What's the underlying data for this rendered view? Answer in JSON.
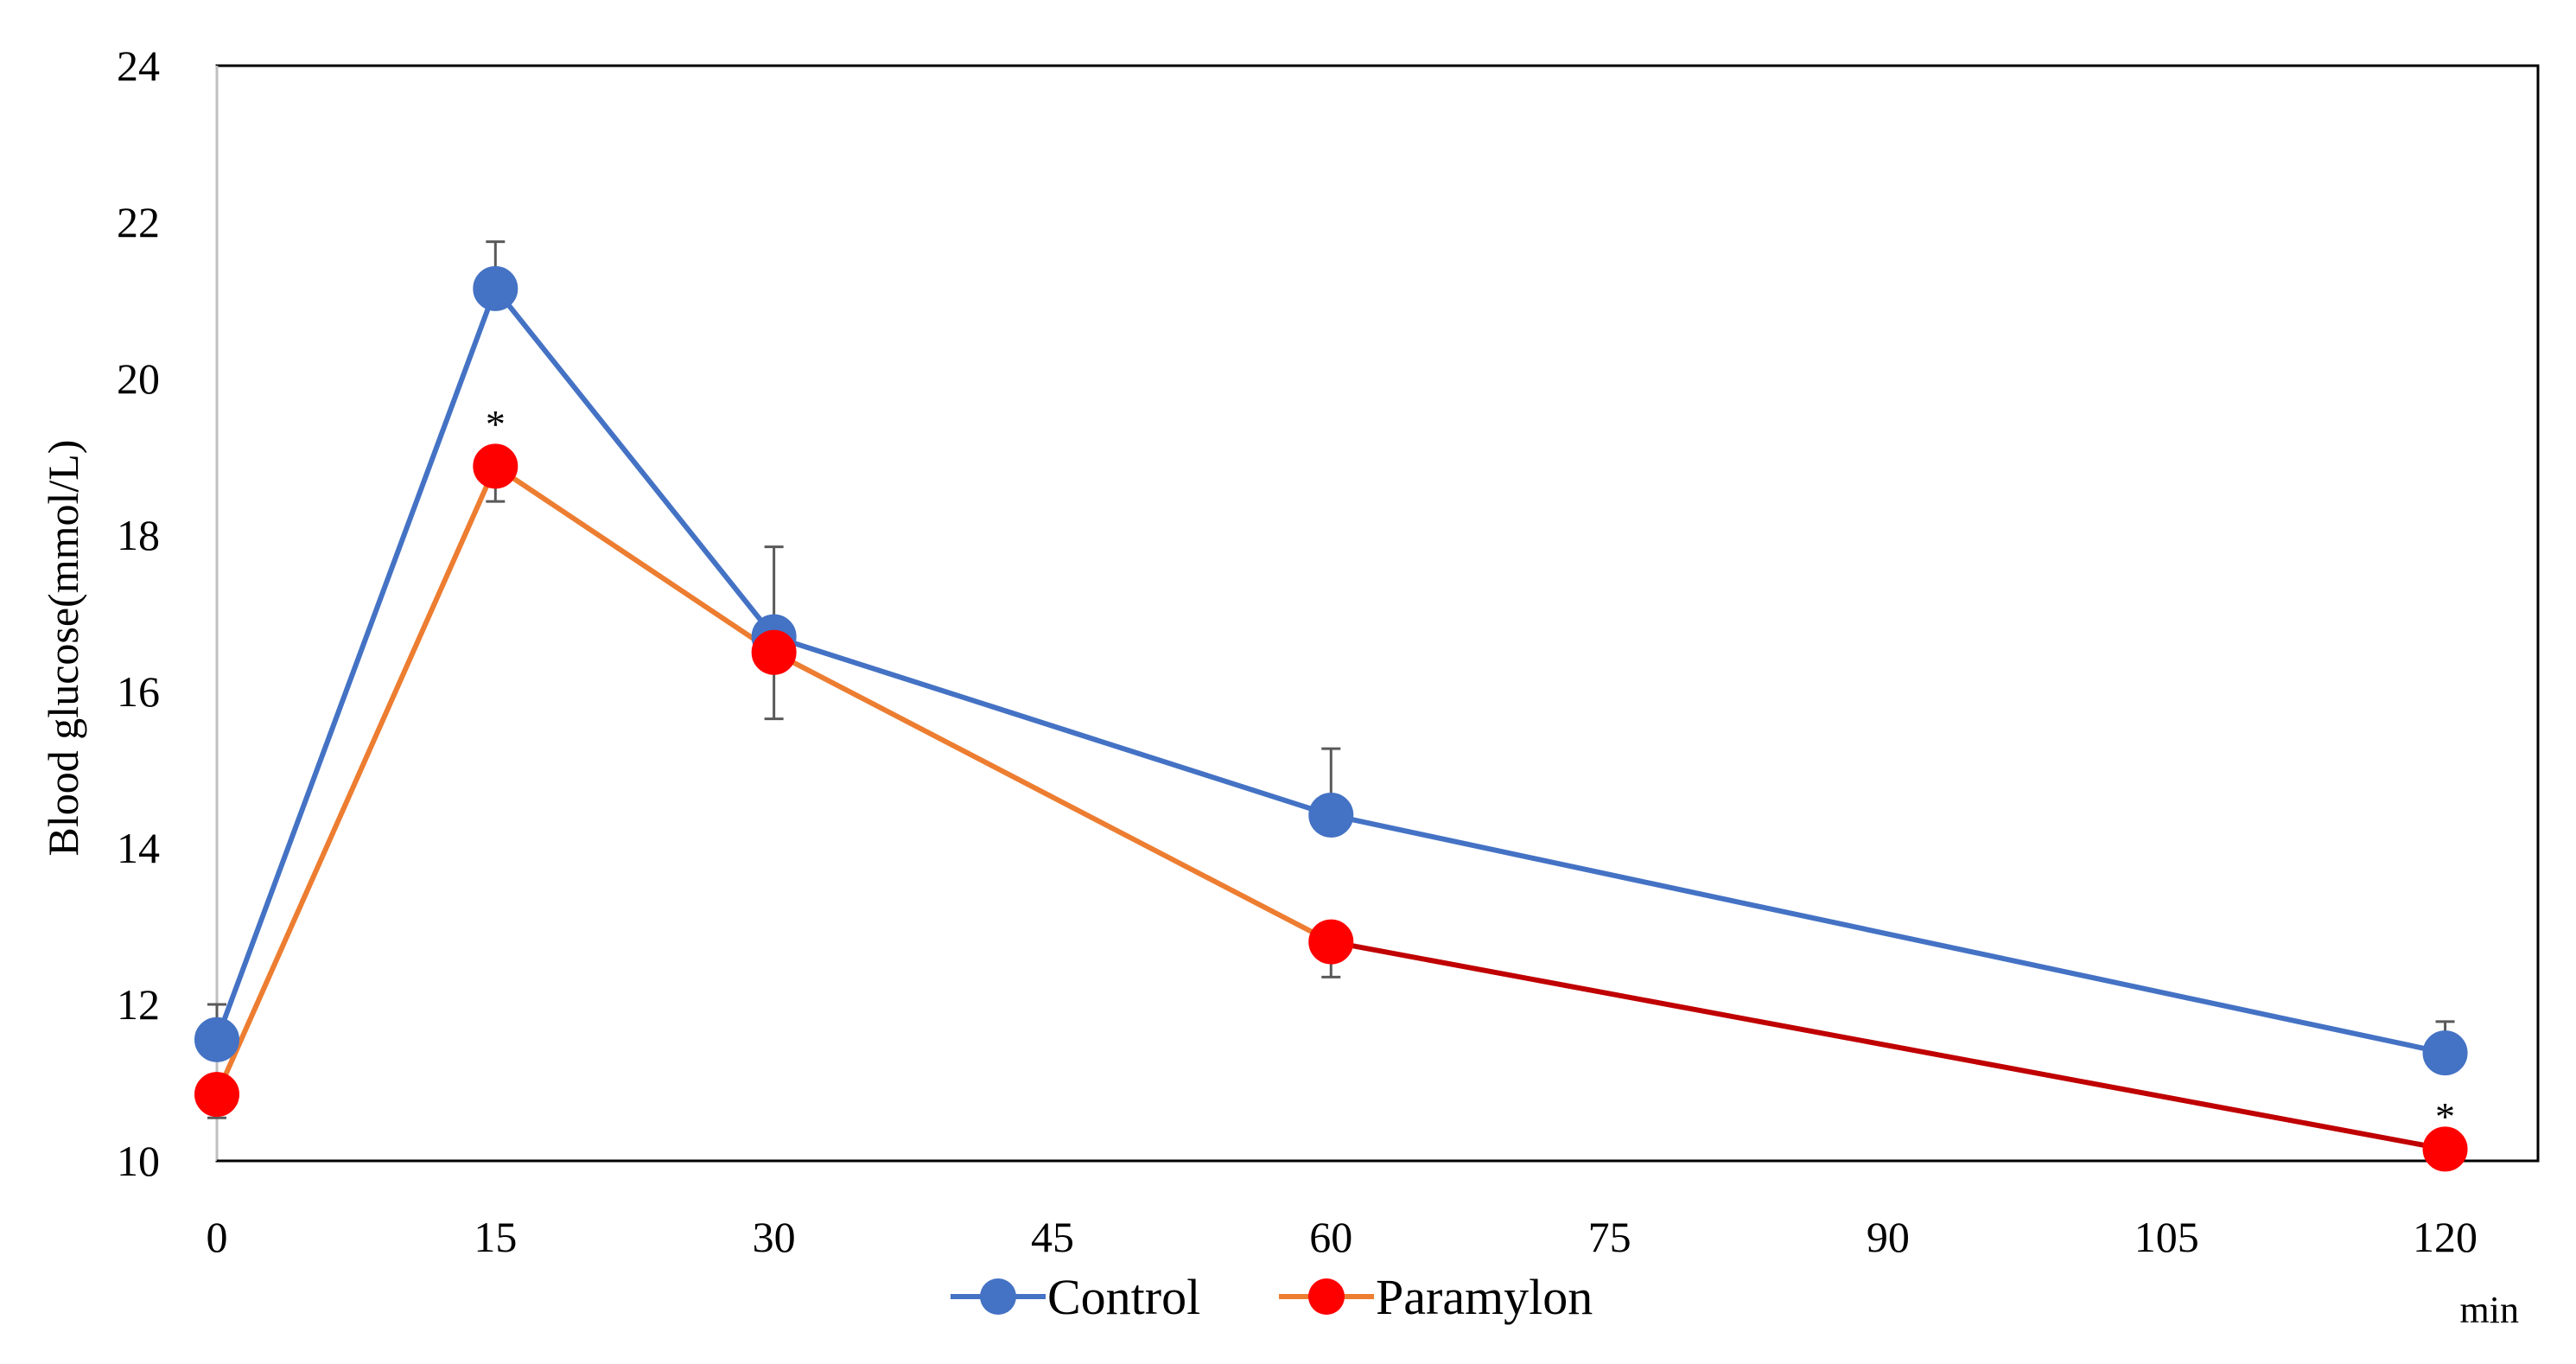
{
  "chart_data": {
    "type": "line",
    "title": "",
    "xlabel": "min",
    "ylabel": "Blood glucose(mmol/L)",
    "xlim": [
      0,
      125
    ],
    "ylim": [
      10,
      24
    ],
    "x_ticks": [
      0,
      15,
      30,
      45,
      60,
      75,
      90,
      105,
      120
    ],
    "y_ticks": [
      10,
      12,
      14,
      16,
      18,
      20,
      22,
      24
    ],
    "x_tick_labels": [
      "0",
      "15",
      "30",
      "45",
      "60",
      "75",
      "90",
      "105",
      "120"
    ],
    "y_tick_labels": [
      "10",
      "12",
      "14",
      "16",
      "18",
      "20",
      "22",
      "24"
    ],
    "grid": false,
    "legend_position": "bottom-center",
    "series": [
      {
        "name": "Control",
        "color": "#4472C4",
        "marker_color": "#4472C4",
        "x": [
          0,
          15,
          30,
          60,
          120
        ],
        "values": [
          11.55,
          21.15,
          16.7,
          14.42,
          11.38
        ],
        "error_plus": [
          0.45,
          0.6,
          1.15,
          0.85,
          0.4
        ]
      },
      {
        "name": "Paramylon",
        "color": "#ED7D31",
        "late_segment_color": "#C00000",
        "marker_color": "#FF0000",
        "x": [
          0,
          15,
          30,
          60,
          120
        ],
        "values": [
          10.85,
          18.88,
          16.5,
          12.8,
          10.15
        ],
        "error_minus": [
          0.3,
          0.45,
          0.85,
          0.45,
          0.2
        ]
      }
    ],
    "annotations": [
      {
        "text": "*",
        "x": 15,
        "y": 19.6
      },
      {
        "text": "*",
        "x": 120,
        "y": 10.75
      }
    ]
  }
}
